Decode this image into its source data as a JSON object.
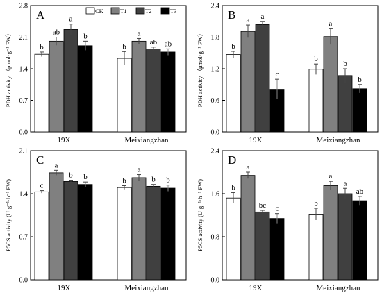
{
  "figure": {
    "legend": [
      {
        "label": "CK",
        "color": "#ffffff"
      },
      {
        "label": "T1",
        "color": "#808080"
      },
      {
        "label": "T2",
        "color": "#404040"
      },
      {
        "label": "T3",
        "color": "#000000"
      }
    ]
  },
  "chart_data": [
    {
      "type": "bar",
      "panel": "A",
      "ylabel": "PDH activity （μmol·g⁻¹ FW）",
      "ylim": [
        0,
        2.8
      ],
      "yticks": [
        "0.0",
        "0.7",
        "1.4",
        "2.1",
        "2.8"
      ],
      "categories": [
        "19X",
        "Meixiangzhan"
      ],
      "series": [
        {
          "name": "CK",
          "values": [
            1.72,
            1.63
          ],
          "errors": [
            0.05,
            0.15
          ],
          "labels": [
            "b",
            "b"
          ]
        },
        {
          "name": "T1",
          "values": [
            2.01,
            2.01
          ],
          "errors": [
            0.09,
            0.06
          ],
          "labels": [
            "ab",
            "a"
          ]
        },
        {
          "name": "T2",
          "values": [
            2.27,
            1.84
          ],
          "errors": [
            0.12,
            0.04
          ],
          "labels": [
            "a",
            "ab"
          ]
        },
        {
          "name": "T3",
          "values": [
            1.91,
            1.77
          ],
          "errors": [
            0.1,
            0.07
          ],
          "labels": [
            "b",
            "ab"
          ]
        }
      ]
    },
    {
      "type": "bar",
      "panel": "B",
      "ylabel": "PDH activity （μmol·g⁻¹ FW）",
      "ylim": [
        0,
        2.4
      ],
      "yticks": [
        "0.0",
        "0.6",
        "1.2",
        "1.8",
        "2.4"
      ],
      "categories": [
        "19X",
        "Meixiangzhan"
      ],
      "series": [
        {
          "name": "CK",
          "values": [
            1.47,
            1.19
          ],
          "errors": [
            0.06,
            0.1
          ],
          "labels": [
            "b",
            "b"
          ]
        },
        {
          "name": "T1",
          "values": [
            1.91,
            1.81
          ],
          "errors": [
            0.12,
            0.15
          ],
          "labels": [
            "a",
            "a"
          ]
        },
        {
          "name": "T2",
          "values": [
            2.04,
            1.07
          ],
          "errors": [
            0.06,
            0.13
          ],
          "labels": [
            "a",
            "b"
          ]
        },
        {
          "name": "T3",
          "values": [
            0.81,
            0.82
          ],
          "errors": [
            0.19,
            0.08
          ],
          "labels": [
            "c",
            "b"
          ]
        }
      ]
    },
    {
      "type": "bar",
      "panel": "C",
      "ylabel": "P5CS activity (U·g⁻¹·h⁻¹ FW)",
      "ylim": [
        0,
        2.1
      ],
      "yticks": [
        "0.0",
        "0.7",
        "1.4",
        "2.1"
      ],
      "categories": [
        "19X",
        "Meixiangzhan"
      ],
      "series": [
        {
          "name": "CK",
          "values": [
            1.43,
            1.5
          ],
          "errors": [
            0.02,
            0.03
          ],
          "labels": [
            "c",
            "b"
          ]
        },
        {
          "name": "T1",
          "values": [
            1.74,
            1.66
          ],
          "errors": [
            0.04,
            0.05
          ],
          "labels": [
            "a",
            "a"
          ]
        },
        {
          "name": "T2",
          "values": [
            1.6,
            1.52
          ],
          "errors": [
            0.02,
            0.03
          ],
          "labels": [
            "b",
            "b"
          ]
        },
        {
          "name": "T3",
          "values": [
            1.55,
            1.49
          ],
          "errors": [
            0.04,
            0.05
          ],
          "labels": [
            "b",
            "b"
          ]
        }
      ]
    },
    {
      "type": "bar",
      "panel": "D",
      "ylabel": "P5CS activity (U·g⁻¹·h⁻¹ FW)",
      "ylim": [
        0,
        2.4
      ],
      "yticks": [
        "0.0",
        "0.8",
        "1.6",
        "2.4"
      ],
      "categories": [
        "19X",
        "Meixiangzhan"
      ],
      "series": [
        {
          "name": "CK",
          "values": [
            1.52,
            1.22
          ],
          "errors": [
            0.1,
            0.11
          ],
          "labels": [
            "b",
            "b"
          ]
        },
        {
          "name": "T1",
          "values": [
            1.94,
            1.75
          ],
          "errors": [
            0.06,
            0.08
          ],
          "labels": [
            "a",
            "a"
          ]
        },
        {
          "name": "T2",
          "values": [
            1.26,
            1.6
          ],
          "errors": [
            0.03,
            0.1
          ],
          "labels": [
            "bc",
            "a"
          ]
        },
        {
          "name": "T3",
          "values": [
            1.14,
            1.47
          ],
          "errors": [
            0.09,
            0.08
          ],
          "labels": [
            "c",
            "ab"
          ]
        }
      ]
    }
  ]
}
